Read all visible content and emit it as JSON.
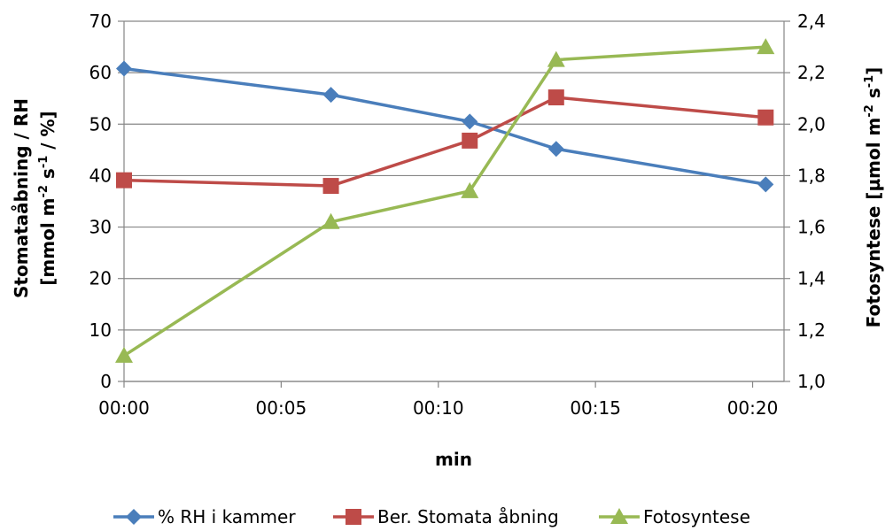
{
  "chart_data": {
    "type": "line",
    "x": [
      "00:00",
      "00:06:35",
      "00:11:00",
      "00:13:45",
      "00:20:25"
    ],
    "x_ticks": [
      "00:00",
      "00:05",
      "00:10",
      "00:15",
      "00:20"
    ],
    "xlabel": "min",
    "xlim": [
      "00:00",
      "00:21:00"
    ],
    "ylabel_left": {
      "line1_a": "Stomataåbning / RH",
      "line2_a": "[mmol m",
      "line2_sup1": "-2",
      "line2_b": " s",
      "line2_sup2": "-1",
      "line2_c": " / %]"
    },
    "ylabel_right": {
      "a": "Fotosyntese [µmol m",
      "sup1": "-2",
      "b": " s",
      "sup2": "-1",
      "c": "]"
    },
    "ylim_left": [
      0,
      70
    ],
    "yticks_left": [
      "0",
      "10",
      "20",
      "30",
      "40",
      "50",
      "60",
      "70"
    ],
    "ylim_right": [
      1.0,
      2.4
    ],
    "yticks_right": [
      "1,0",
      "1,2",
      "1,4",
      "1,6",
      "1,8",
      "2,0",
      "2,2",
      "2,4"
    ],
    "grid": "horizontal",
    "legend_position": "bottom",
    "series": [
      {
        "name": "% RH i kammer",
        "axis": "left",
        "marker": "diamond",
        "color": "#4a7ebb",
        "values": [
          60.8,
          55.7,
          50.5,
          45.2,
          38.3
        ]
      },
      {
        "name": "Ber. Stomata åbning",
        "axis": "left",
        "marker": "square",
        "color": "#be4b48",
        "values": [
          39.1,
          38.0,
          46.8,
          55.2,
          51.3
        ]
      },
      {
        "name": "Fotosyntese",
        "axis": "right",
        "marker": "triangle",
        "color": "#98b954",
        "values": [
          1.1,
          1.62,
          1.74,
          2.25,
          2.3
        ]
      }
    ]
  }
}
